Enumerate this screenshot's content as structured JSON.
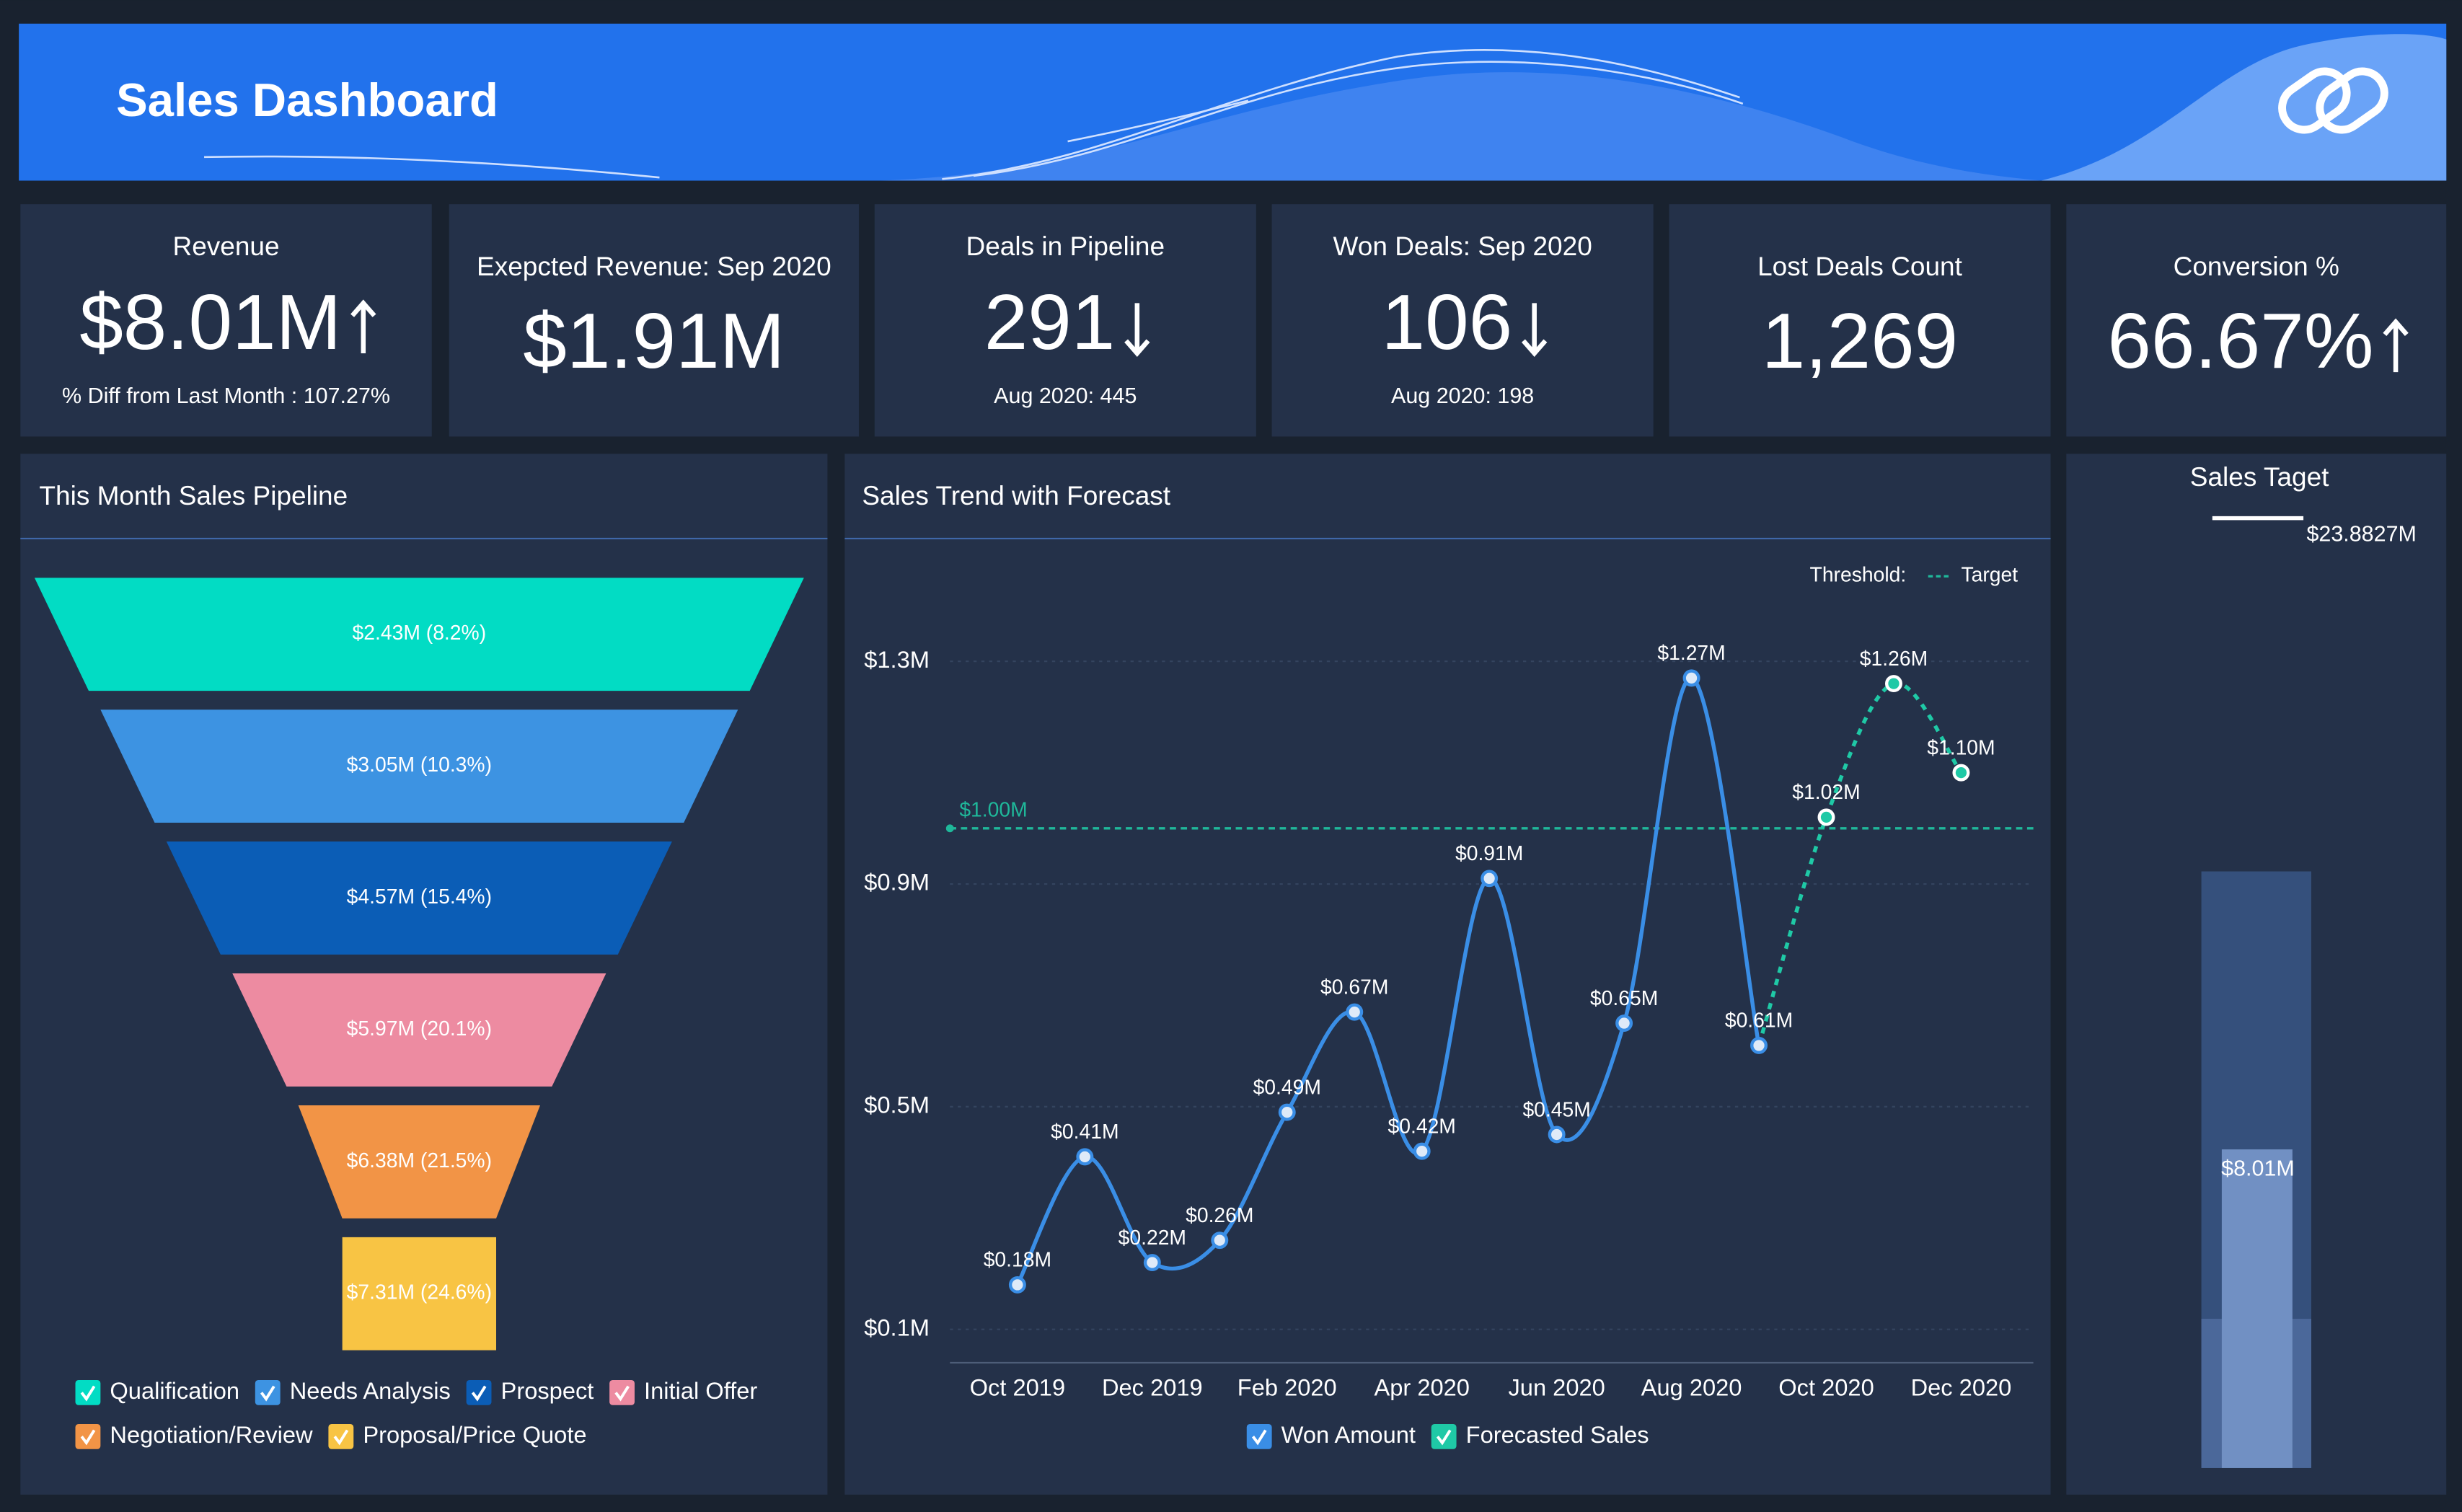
{
  "header": {
    "title": "Sales Dashboard"
  },
  "kpis": [
    {
      "title": "Revenue",
      "value": "$8.01M",
      "trend": "up",
      "note": "% Diff from Last Month : 107.27%"
    },
    {
      "title": "Exepcted Revenue: Sep 2020",
      "value": "$1.91M"
    },
    {
      "title": "Deals in Pipeline",
      "value": "291",
      "trend": "down",
      "note": "Aug 2020: 445"
    },
    {
      "title": "Won Deals: Sep 2020",
      "value": "106",
      "trend": "down",
      "note": "Aug 2020: 198"
    },
    {
      "title": "Lost Deals Count",
      "value": "1,269"
    },
    {
      "title": "Conversion %",
      "value": "66.67%",
      "trend": "up"
    }
  ],
  "chart_data": [
    {
      "type": "funnel",
      "title": "This Month Sales Pipeline",
      "categories": [
        "Qualification",
        "Needs Analysis",
        "Prospect",
        "Initial Offer",
        "Negotiation/Review",
        "Proposal/Price Quote"
      ],
      "values": [
        2.43,
        3.05,
        4.57,
        5.97,
        6.38,
        7.31
      ],
      "value_labels": [
        "$2.43M (8.2%)",
        "$3.05M (10.3%)",
        "$4.57M (15.4%)",
        "$5.97M (20.1%)",
        "$6.38M (21.5%)",
        "$7.31M (24.6%)"
      ],
      "colors": [
        "#02dcc4",
        "#3d93e2",
        "#0b5db6",
        "#ed8ba1",
        "#f29446",
        "#f8c444"
      ]
    },
    {
      "type": "line",
      "title": "Sales Trend with Forecast",
      "categories": [
        "Oct 2019",
        null,
        "Dec 2019",
        null,
        "Feb 2020",
        null,
        "Apr 2020",
        null,
        "Jun 2020",
        null,
        "Aug 2020",
        null,
        "Oct 2020",
        null,
        "Dec 2020"
      ],
      "series": [
        {
          "name": "Won Amount",
          "color": "#3a8ee6",
          "style": "solid",
          "values": [
            0.18,
            0.41,
            0.22,
            0.26,
            0.49,
            0.67,
            0.42,
            0.91,
            0.45,
            0.65,
            1.27,
            0.61,
            null,
            null,
            null
          ],
          "value_labels": [
            "$0.18M",
            "$0.41M",
            "$0.22M",
            "$0.26M",
            "$0.49M",
            "$0.67M",
            "$0.42M",
            "$0.91M",
            "$0.45M",
            "$0.65M",
            "$1.27M",
            "$0.61M",
            null,
            null,
            null
          ]
        },
        {
          "name": "Forecasted Sales",
          "color": "#1fc9a6",
          "style": "dashed",
          "values": [
            null,
            null,
            null,
            null,
            null,
            null,
            null,
            null,
            null,
            null,
            null,
            0.61,
            1.02,
            1.26,
            1.1
          ],
          "value_labels": [
            null,
            null,
            null,
            null,
            null,
            null,
            null,
            null,
            null,
            null,
            null,
            null,
            "$1.02M",
            "$1.26M",
            "$1.10M"
          ]
        }
      ],
      "ylim": [
        0.04,
        1.45
      ],
      "yticks": [
        {
          "value": 0.1,
          "label": "$0.1M"
        },
        {
          "value": 0.5,
          "label": "$0.5M"
        },
        {
          "value": 0.9,
          "label": "$0.9M"
        },
        {
          "value": 1.3,
          "label": "$1.3M"
        }
      ],
      "grid": true,
      "threshold": {
        "label": "Threshold:",
        "name": "Target",
        "value": 1.0,
        "value_label": "$1.00M",
        "color": "#1fb89a"
      }
    },
    {
      "type": "bullet",
      "title": "Sales Taget",
      "value": 8.01,
      "value_label": "$8.01M",
      "color": "#7190c3",
      "target": 23.8827,
      "target_label": "$23.8827M",
      "target_color": "#ffffff"
    }
  ]
}
